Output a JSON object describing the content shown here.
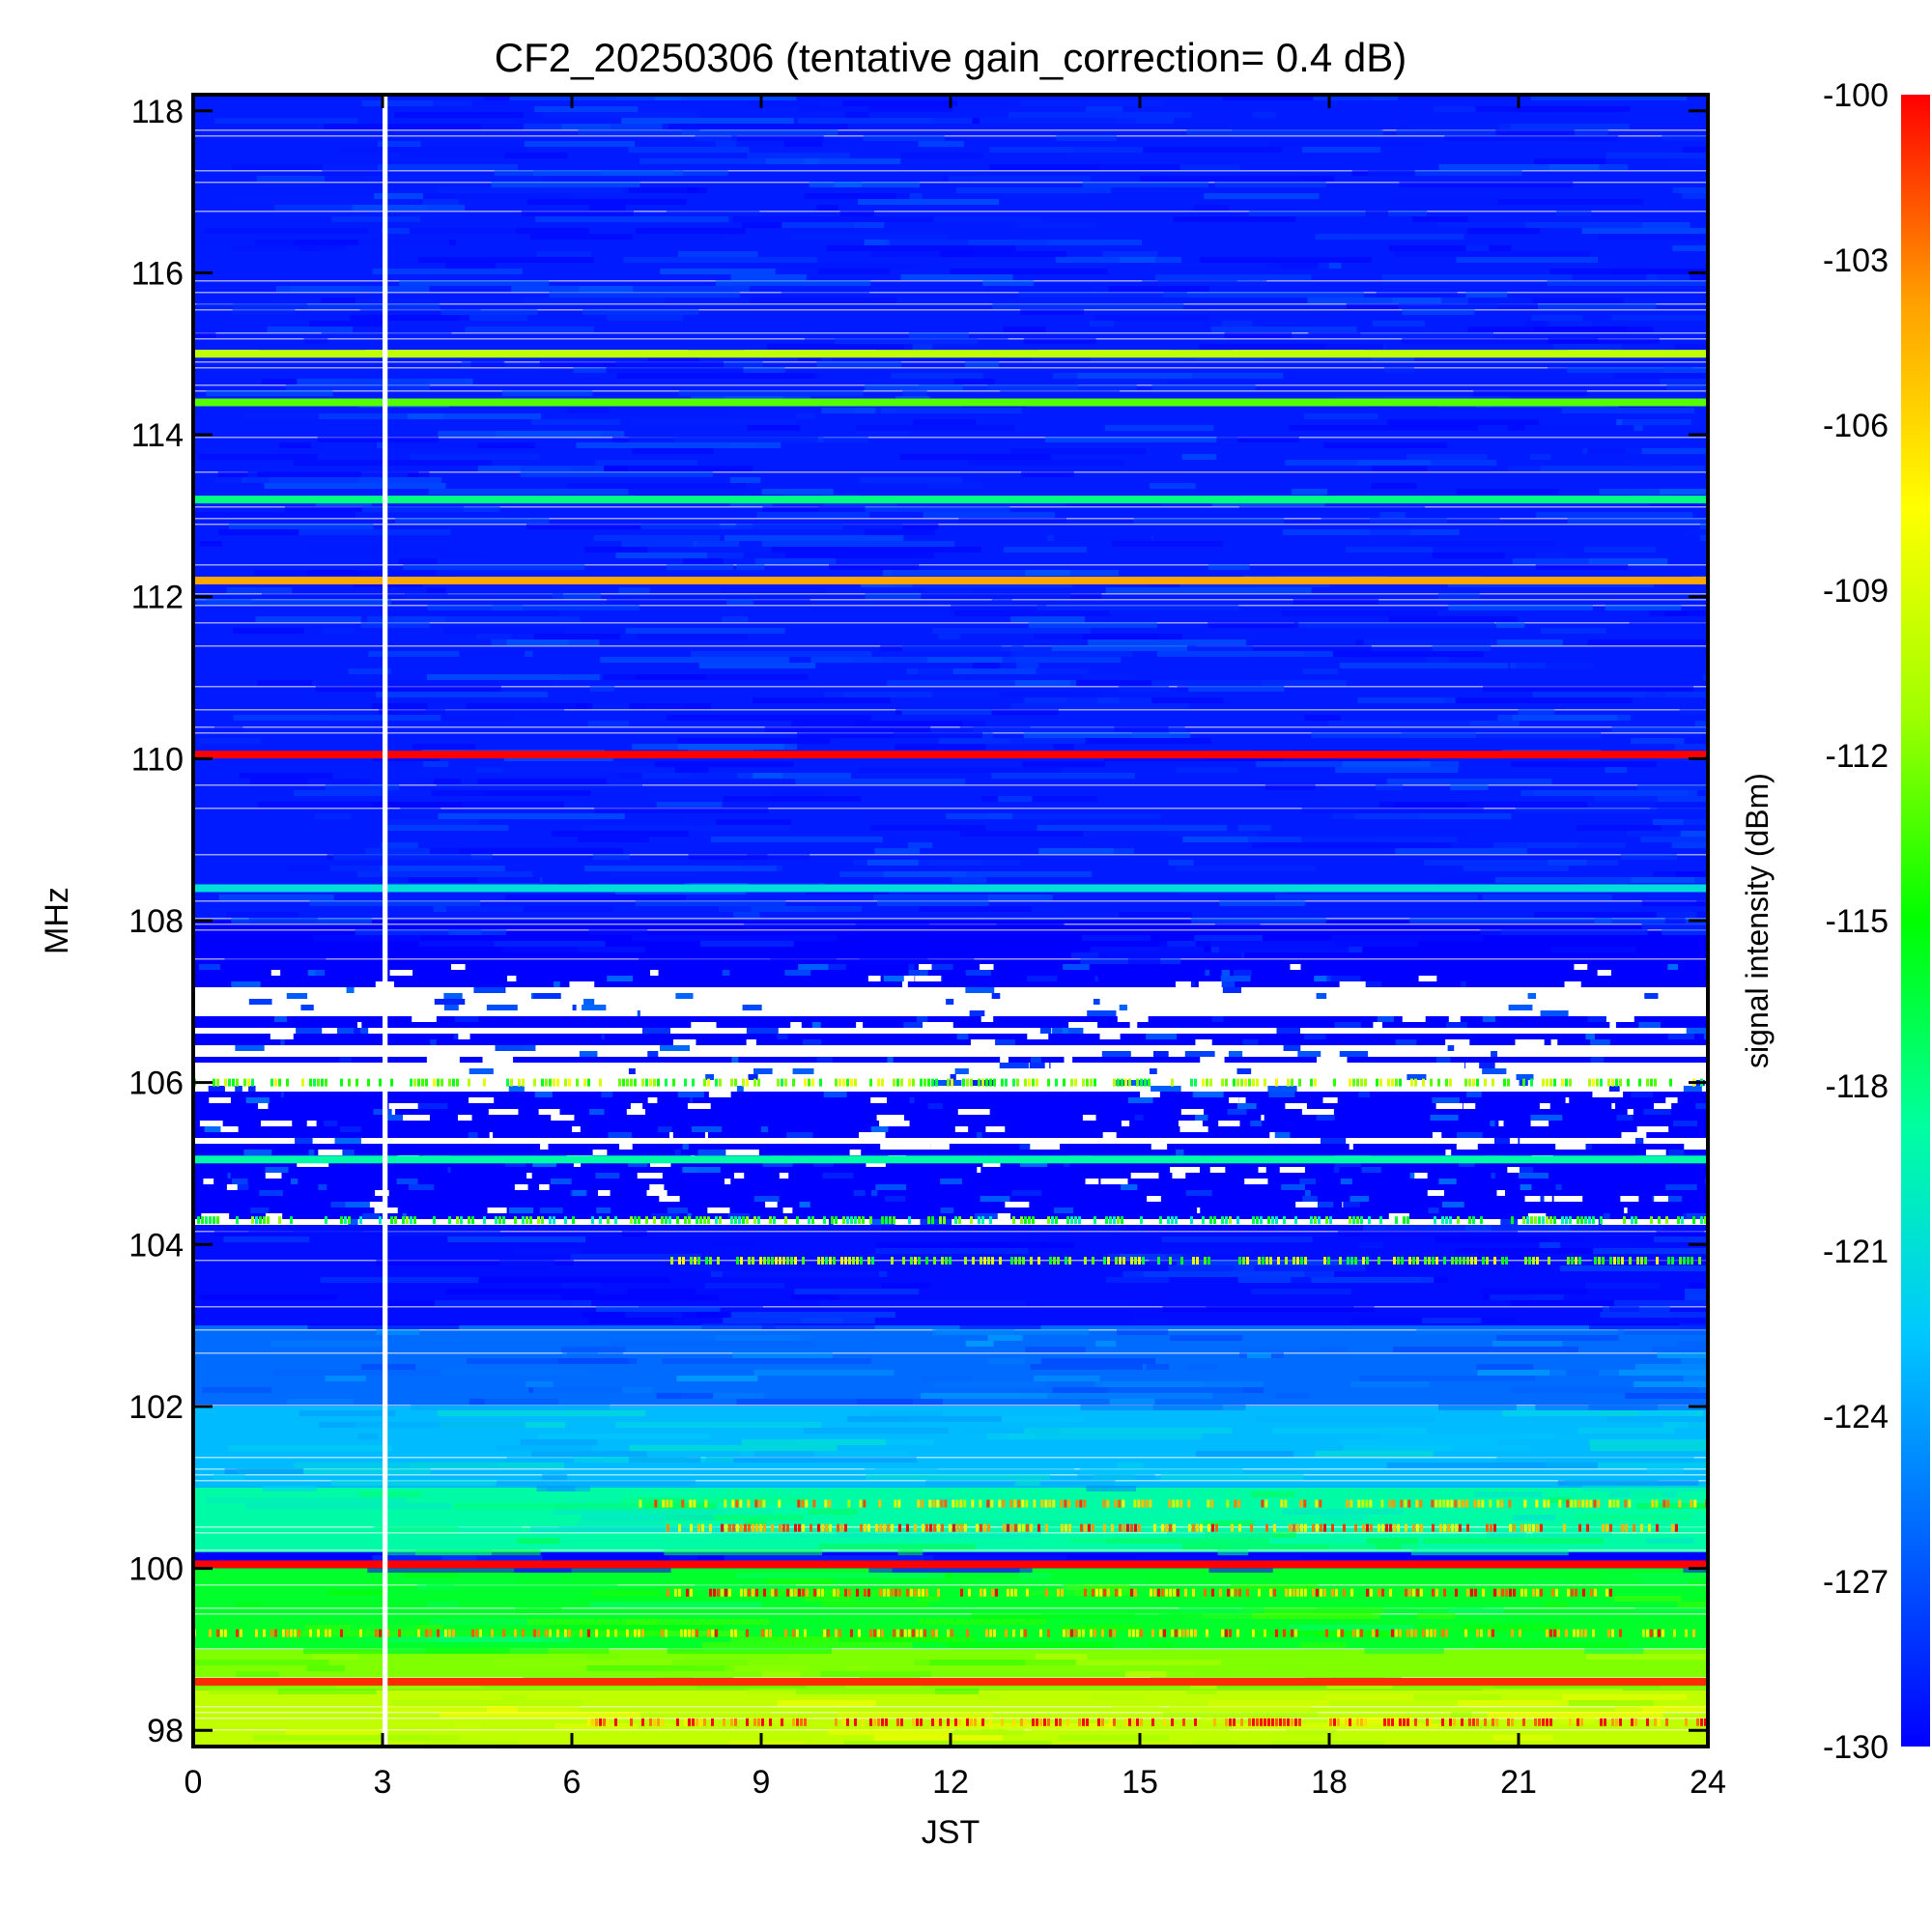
{
  "chart_data": {
    "type": "heatmap",
    "title": "CF2_20250306 (tentative gain_correction=  0.4 dB)",
    "xlabel": "JST",
    "ylabel": "MHz",
    "xlim": [
      0,
      24
    ],
    "ylim": [
      97.8,
      118.2
    ],
    "x_ticks": [
      "0",
      "3",
      "6",
      "9",
      "12",
      "15",
      "18",
      "21",
      "24"
    ],
    "y_ticks": [
      "98",
      "100",
      "102",
      "104",
      "106",
      "108",
      "110",
      "112",
      "114",
      "116",
      "118"
    ],
    "colorbar": {
      "label": "signal intensity (dBm)",
      "range": [
        -130,
        -100
      ],
      "ticks": [
        "-100",
        "-103",
        "-106",
        "-109",
        "-112",
        "-115",
        "-118",
        "-121",
        "-124",
        "-127",
        "-130"
      ],
      "colormap": [
        "#0000ff",
        "#0064ff",
        "#00c8ff",
        "#00ffa0",
        "#00ff00",
        "#a0ff00",
        "#ffff00",
        "#ffa000",
        "#ff0000"
      ]
    },
    "data_gap": {
      "jst": [
        3.0,
        3.08
      ],
      "color": "#ffffff"
    },
    "background_levels_dBm": [
      {
        "mhz": [
          108,
          118.2
        ],
        "level": -129
      },
      {
        "mhz": [
          104.3,
          108
        ],
        "level": -130
      },
      {
        "mhz": [
          103,
          104.3
        ],
        "level": -129.5
      },
      {
        "mhz": [
          102,
          103
        ],
        "level": -126
      },
      {
        "mhz": [
          101,
          102
        ],
        "level": -123
      },
      {
        "mhz": [
          100.2,
          101
        ],
        "level": -119
      },
      {
        "mhz": [
          99,
          100
        ],
        "level": -116
      },
      {
        "mhz": [
          98.5,
          99
        ],
        "level": -112
      },
      {
        "mhz": [
          97.8,
          98.5
        ],
        "level": -110
      }
    ],
    "persistent_lines": [
      {
        "mhz": 115.0,
        "level_dBm": -110
      },
      {
        "mhz": 114.4,
        "level_dBm": -113
      },
      {
        "mhz": 113.2,
        "level_dBm": -118
      },
      {
        "mhz": 112.2,
        "level_dBm": -104
      },
      {
        "mhz": 110.05,
        "level_dBm": -100
      },
      {
        "mhz": 108.4,
        "level_dBm": -121
      },
      {
        "mhz": 105.05,
        "level_dBm": -119
      },
      {
        "mhz": 100.05,
        "level_dBm": -100
      },
      {
        "mhz": 98.6,
        "level_dBm": -101
      }
    ],
    "intermittent_bands": [
      {
        "mhz": 106.0,
        "jst": [
          0,
          24
        ],
        "level_dBm": -112
      },
      {
        "mhz": 104.3,
        "jst": [
          0,
          24
        ],
        "level_dBm": -116
      },
      {
        "mhz": 103.8,
        "jst": [
          7.5,
          24
        ],
        "level_dBm": -112
      },
      {
        "mhz": 99.7,
        "jst": [
          7.5,
          22.5
        ],
        "level_dBm": -104
      },
      {
        "mhz": 99.2,
        "jst": [
          0,
          24
        ],
        "level_dBm": -105
      },
      {
        "mhz": 98.1,
        "jst": [
          6,
          24
        ],
        "level_dBm": -102
      },
      {
        "mhz": 100.5,
        "jst": [
          7.5,
          23.5
        ],
        "level_dBm": -104
      },
      {
        "mhz": 100.8,
        "jst": [
          7,
          24
        ],
        "level_dBm": -106
      }
    ],
    "sparse_region_mhz": [
      104.3,
      107.5
    ]
  }
}
